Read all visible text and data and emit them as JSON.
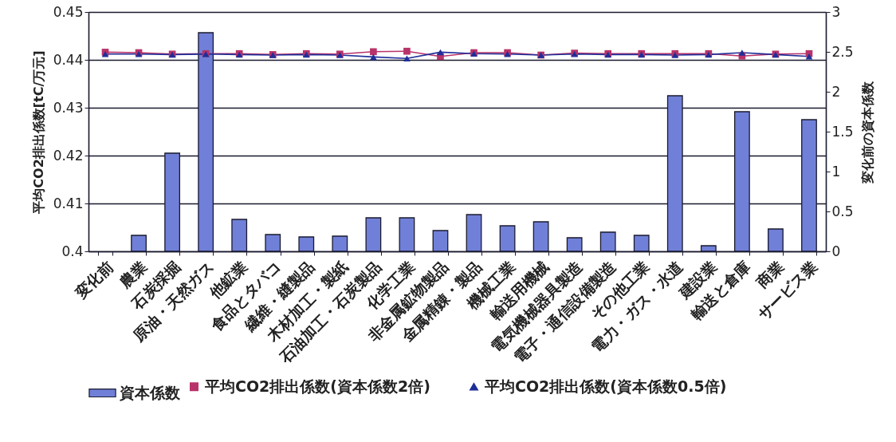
{
  "chart_data": {
    "type": "bar",
    "ylabel": "平均CO2排出係数[tC/万元]",
    "y2label": "変化前の資本係数",
    "categories": [
      "変化前",
      "農業",
      "石炭採掘",
      "原油・天然ガス",
      "他鉱業",
      "食品とタバコ",
      "繊維・縫製品",
      "木材加工・製紙",
      "石油加工・石炭製品",
      "化学工業",
      "非金属鉱物製品",
      "金属精錬・製品",
      "機械工業",
      "輸送用機械",
      "電気機械器具製造",
      "電子・通信設備製造",
      "その他工業",
      "電力・ガス・水道",
      "建設業",
      "輸送と倉庫",
      "商業",
      "サービス業"
    ],
    "series": [
      {
        "name": "資本係数",
        "axis": "y2",
        "color": "#7080d8",
        "values": [
          null,
          0.2,
          1.23,
          2.74,
          0.4,
          0.21,
          0.18,
          0.19,
          0.42,
          0.42,
          0.26,
          0.46,
          0.32,
          0.37,
          0.17,
          0.24,
          0.2,
          1.95,
          0.07,
          1.75,
          0.28,
          1.65
        ]
      },
      {
        "name": "平均CO2排出係数(資本係数2倍)",
        "type": "line",
        "marker": "square",
        "color": "#b8336a",
        "values": [
          0.4416,
          0.4415,
          0.4412,
          0.4413,
          0.4413,
          0.4411,
          0.4413,
          0.4412,
          0.4417,
          0.4418,
          0.4407,
          0.4415,
          0.4415,
          0.441,
          0.4414,
          0.4413,
          0.4413,
          0.4413,
          0.4413,
          0.4408,
          0.4412,
          0.4413
        ]
      },
      {
        "name": "平均CO2排出係数(資本係数0.5倍)",
        "type": "line",
        "marker": "triangle",
        "color": "#1f2f99",
        "values": [
          0.4412,
          0.4412,
          0.4411,
          0.4412,
          0.4411,
          0.441,
          0.4411,
          0.441,
          0.4406,
          0.4403,
          0.4416,
          0.4413,
          0.4412,
          0.441,
          0.4412,
          0.4411,
          0.4411,
          0.441,
          0.4411,
          0.4415,
          0.4411,
          0.4407
        ]
      }
    ],
    "ylim": [
      0.4,
      0.45
    ],
    "yticks": [
      0.4,
      0.41,
      0.42,
      0.43,
      0.44,
      0.45
    ],
    "y2lim": [
      0,
      3
    ],
    "y2ticks": [
      0,
      0.5,
      1,
      1.5,
      2,
      2.5,
      3
    ],
    "grid": "y",
    "legend": "bottom"
  }
}
